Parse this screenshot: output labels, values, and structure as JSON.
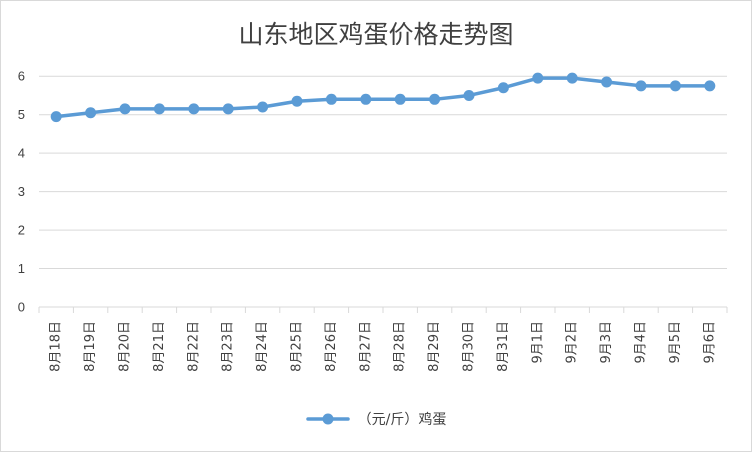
{
  "chart_data": {
    "type": "line",
    "title": "山东地区鸡蛋价格走势图",
    "categories": [
      "8月18日",
      "8月19日",
      "8月20日",
      "8月21日",
      "8月22日",
      "8月23日",
      "8月24日",
      "8月25日",
      "8月26日",
      "8月27日",
      "8月28日",
      "8月29日",
      "8月30日",
      "8月31日",
      "9月1日",
      "9月2日",
      "9月3日",
      "9月4日",
      "9月5日",
      "9月6日"
    ],
    "series": [
      {
        "name": "（元/斤）鸡蛋",
        "values": [
          4.95,
          5.05,
          5.15,
          5.15,
          5.15,
          5.15,
          5.2,
          5.35,
          5.4,
          5.4,
          5.4,
          5.4,
          5.5,
          5.7,
          5.95,
          5.95,
          5.85,
          5.75,
          5.75,
          5.75
        ],
        "color": "#5b9bd5"
      }
    ],
    "yticks": [
      0,
      1,
      2,
      3,
      4,
      5,
      6
    ],
    "ylim": [
      0,
      6.5
    ],
    "xlabel": "",
    "ylabel": "",
    "grid": true,
    "legend": "bottom-center"
  }
}
